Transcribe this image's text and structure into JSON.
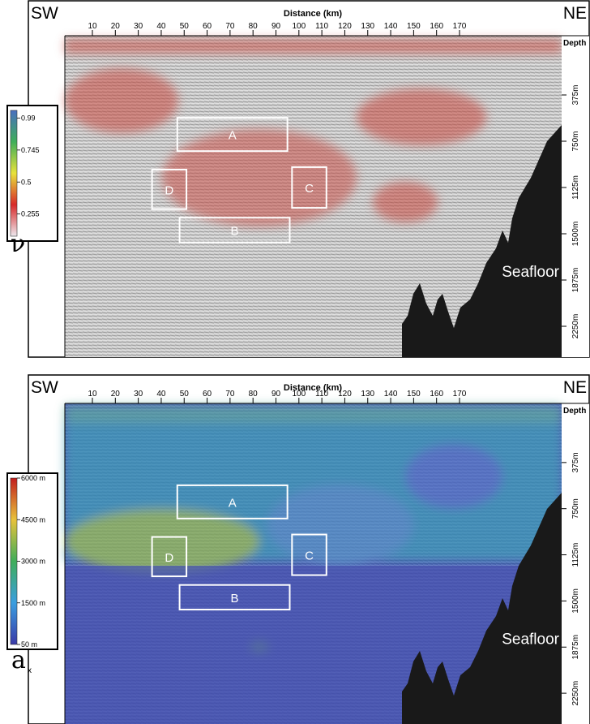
{
  "chart_data": [
    {
      "type": "heatmap",
      "panel": "top",
      "x_direction_left": "SW",
      "x_direction_right": "NE",
      "xlabel": "Distance (km)",
      "x_ticks": [
        10,
        20,
        30,
        40,
        50,
        60,
        70,
        80,
        90,
        100,
        110,
        120,
        130,
        140,
        150,
        160,
        170
      ],
      "depth_header": "Depth",
      "depth_ticks": [
        "375m",
        "750m",
        "1125m",
        "1500m",
        "1875m",
        "2250m"
      ],
      "colorbar": {
        "symbol": "ν",
        "tick_labels": [
          "0.99",
          "0.745",
          "0.5",
          "0.255"
        ],
        "colors": [
          "#4a6fc0",
          "#3fae5a",
          "#e8e23a",
          "#d82a2a",
          "#ede8ee"
        ]
      },
      "regions": [
        {
          "label": "A",
          "x_km": [
            47,
            95
          ],
          "depth_m": [
            560,
            830
          ]
        },
        {
          "label": "B",
          "x_km": [
            48,
            96
          ],
          "depth_m": [
            1370,
            1570
          ]
        },
        {
          "label": "C",
          "x_km": [
            97,
            112
          ],
          "depth_m": [
            960,
            1290
          ]
        },
        {
          "label": "D",
          "x_km": [
            36,
            51
          ],
          "depth_m": [
            980,
            1300
          ]
        }
      ],
      "annotation": "Seafloor"
    },
    {
      "type": "heatmap",
      "panel": "bottom",
      "x_direction_left": "SW",
      "x_direction_right": "NE",
      "xlabel": "Distance (km)",
      "x_ticks": [
        10,
        20,
        30,
        40,
        50,
        60,
        70,
        80,
        90,
        100,
        110,
        120,
        130,
        140,
        150,
        160,
        170
      ],
      "depth_header": "Depth",
      "depth_ticks": [
        "375m",
        "750m",
        "1125m",
        "1500m",
        "1875m",
        "2250m"
      ],
      "colorbar": {
        "symbol": "a",
        "symbol_subscript": "x",
        "tick_labels": [
          "6000 m",
          "4500 m",
          "3000 m",
          "1500 m",
          "50 m"
        ],
        "colors": [
          "#c21e1e",
          "#e8c23a",
          "#3fae5a",
          "#3a9ee0",
          "#3a3aa8"
        ]
      },
      "regions": [
        {
          "label": "A",
          "x_km": [
            47,
            95
          ],
          "depth_m": [
            560,
            830
          ]
        },
        {
          "label": "B",
          "x_km": [
            48,
            96
          ],
          "depth_m": [
            1370,
            1570
          ]
        },
        {
          "label": "C",
          "x_km": [
            97,
            112
          ],
          "depth_m": [
            960,
            1290
          ]
        },
        {
          "label": "D",
          "x_km": [
            36,
            51
          ],
          "depth_m": [
            980,
            1300
          ]
        }
      ],
      "annotation": "Seafloor"
    }
  ]
}
